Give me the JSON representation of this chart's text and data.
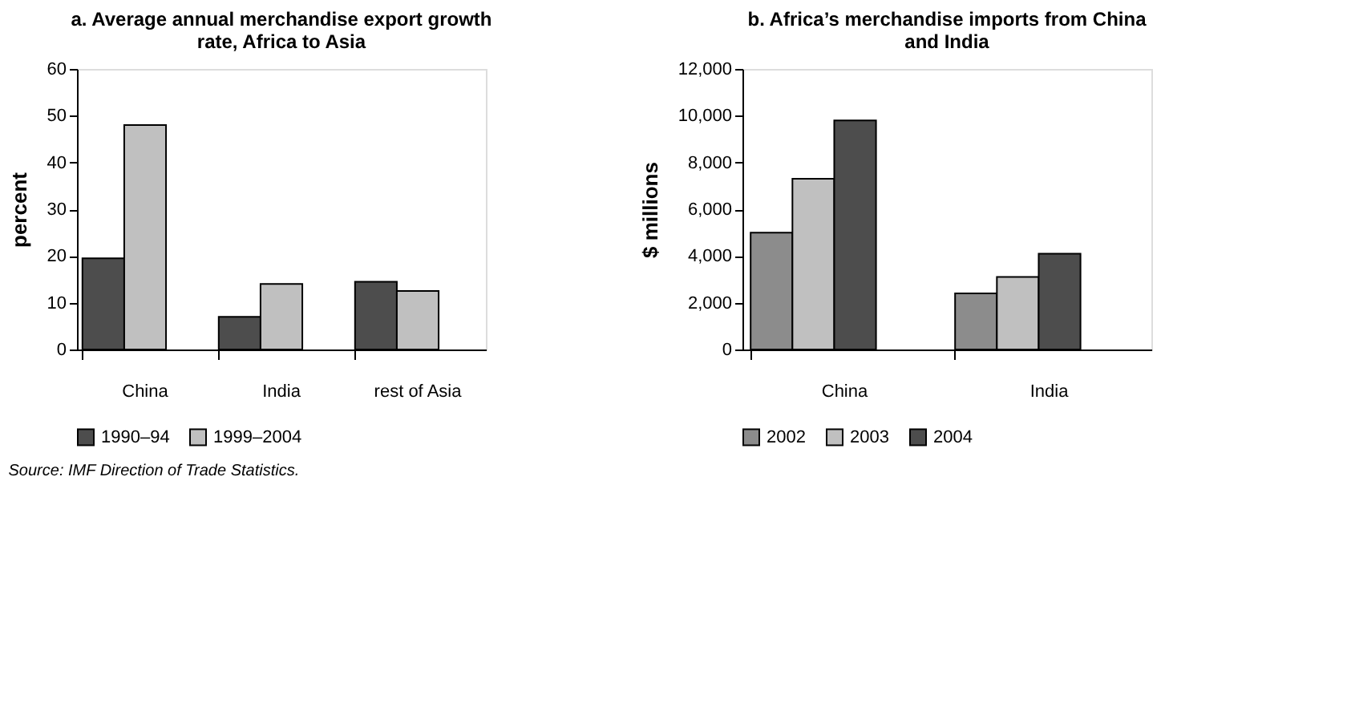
{
  "chart_data": [
    {
      "type": "bar",
      "title": "a. Average annual merchandise export growth rate, Africa to Asia",
      "ylabel": "percent",
      "categories": [
        "China",
        "India",
        "rest of Asia"
      ],
      "series": [
        {
          "name": "1990–94",
          "color": "#4d4d4d",
          "values": [
            19.5,
            7,
            14.5
          ]
        },
        {
          "name": "1999–2004",
          "color": "#c0c0c0",
          "values": [
            48,
            14,
            12.5
          ]
        }
      ],
      "ylim": [
        0,
        60
      ],
      "yticks": [
        0,
        10,
        20,
        30,
        40,
        50,
        60
      ],
      "grid": false,
      "legend": "bottom",
      "annotations": [
        "Source: IMF Direction of Trade Statistics."
      ]
    },
    {
      "type": "bar",
      "title": "b. Africa’s merchandise imports from China and India",
      "ylabel": "$ millions",
      "categories": [
        "China",
        "India"
      ],
      "series": [
        {
          "name": "2002",
          "color": "#8c8c8c",
          "values": [
            5000,
            2400
          ]
        },
        {
          "name": "2003",
          "color": "#c0c0c0",
          "values": [
            7300,
            3100
          ]
        },
        {
          "name": "2004",
          "color": "#4d4d4d",
          "values": [
            9800,
            4100
          ]
        }
      ],
      "ylim": [
        0,
        12000
      ],
      "yticks": [
        0,
        {
          "value": 2000,
          "label": "2,000"
        },
        {
          "value": 4000,
          "label": "4,000"
        },
        {
          "value": 6000,
          "label": "6,000"
        },
        {
          "value": 8000,
          "label": "8,000"
        },
        {
          "value": 10000,
          "label": "10,000"
        },
        {
          "value": 12000,
          "label": "12,000"
        }
      ],
      "grid": false,
      "legend": "bottom"
    }
  ]
}
